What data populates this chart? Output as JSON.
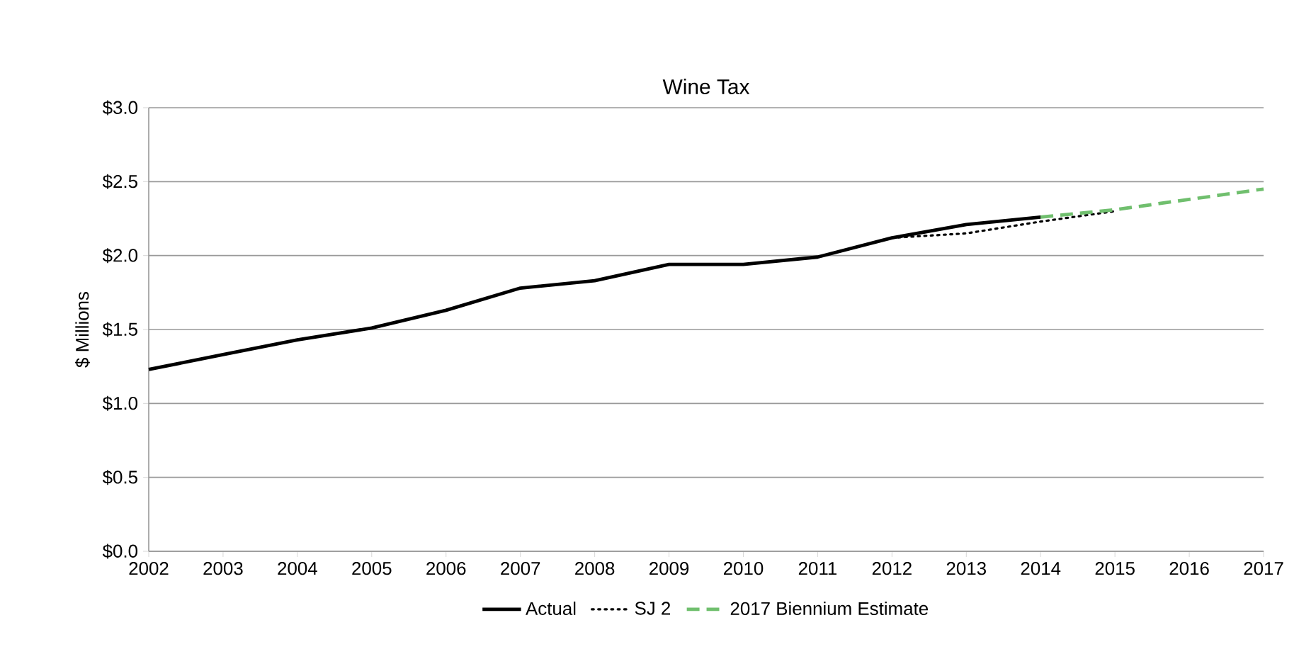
{
  "chart_data": {
    "type": "line",
    "title": "Wine Tax",
    "ylabel": "$ Millions",
    "x": [
      2002,
      2003,
      2004,
      2005,
      2006,
      2007,
      2008,
      2009,
      2010,
      2011,
      2012,
      2013,
      2014,
      2015,
      2016,
      2017
    ],
    "series": [
      {
        "name": "Actual",
        "color": "#000000",
        "line_style": "solid",
        "values": [
          1.23,
          1.33,
          1.43,
          1.51,
          1.63,
          1.78,
          1.83,
          1.94,
          1.94,
          1.99,
          2.12,
          2.21,
          2.26,
          null,
          null,
          null
        ]
      },
      {
        "name": "SJ 2",
        "color": "#000000",
        "line_style": "dotted",
        "values": [
          null,
          null,
          null,
          null,
          null,
          null,
          null,
          null,
          null,
          null,
          2.12,
          2.15,
          2.23,
          2.3,
          null,
          null
        ]
      },
      {
        "name": "2017 Biennium Estimate",
        "color": "#70bf6e",
        "line_style": "dashed",
        "values": [
          null,
          null,
          null,
          null,
          null,
          null,
          null,
          null,
          null,
          null,
          null,
          null,
          2.26,
          2.31,
          2.38,
          2.45
        ]
      }
    ],
    "xlim": [
      2002,
      2017
    ],
    "xticks": [
      2002,
      2003,
      2004,
      2005,
      2006,
      2007,
      2008,
      2009,
      2010,
      2011,
      2012,
      2013,
      2014,
      2015,
      2016,
      2017
    ],
    "ylim": [
      0,
      3
    ],
    "yticks": [
      {
        "value": 0,
        "label": "$0.0"
      },
      {
        "value": 0.5,
        "label": "$0.5"
      },
      {
        "value": 1,
        "label": "$1.0"
      },
      {
        "value": 1.5,
        "label": "$1.5"
      },
      {
        "value": 2,
        "label": "$2.0"
      },
      {
        "value": 2.5,
        "label": "$2.5"
      },
      {
        "value": 3,
        "label": "$3.0"
      }
    ],
    "grid": "y",
    "legend": "bottom",
    "marker": "none"
  }
}
